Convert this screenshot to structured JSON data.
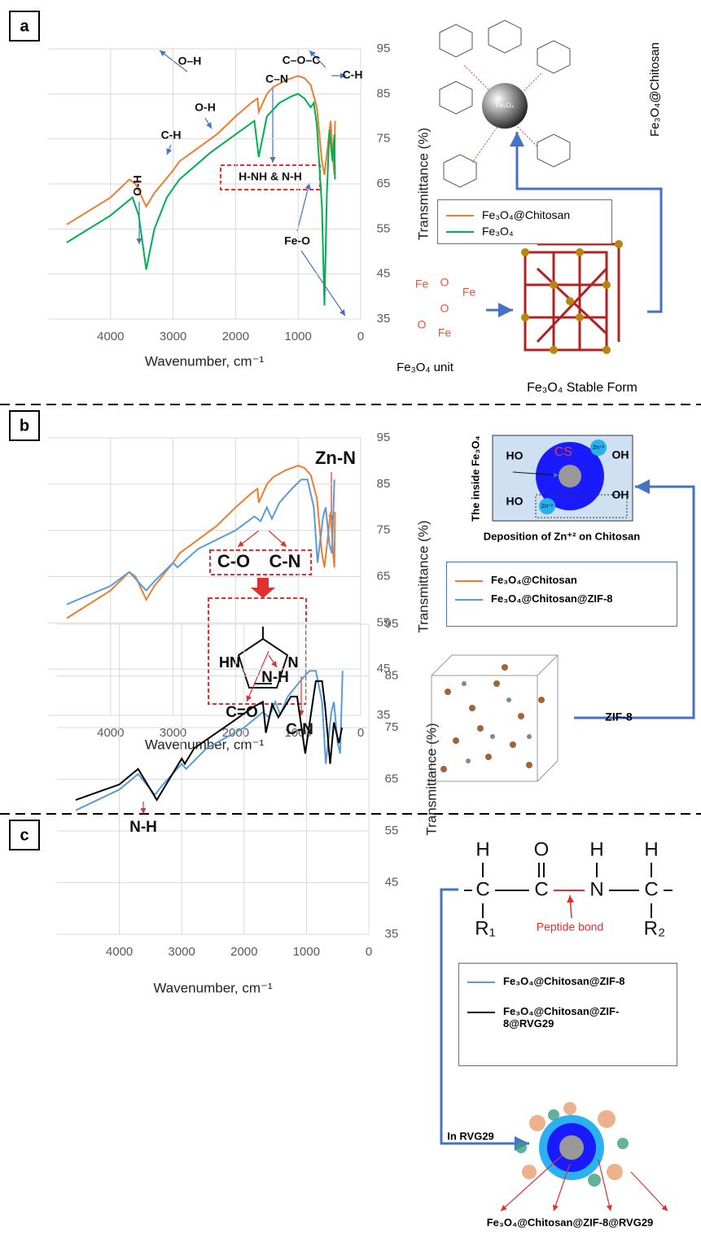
{
  "panels": [
    {
      "label": "a",
      "diagram": {
        "rotated_title": "Fe₃O₄@Chitosan",
        "sphere": "Fe₃O₄",
        "unit_atoms": [
          "Fe",
          "O",
          "Fe",
          "O",
          "Fe",
          "O"
        ],
        "unit_caption": "Fe₃O₄ unit",
        "stable_caption": "Fe₃O₄ Stable Form"
      }
    },
    {
      "label": "b",
      "diagram": {
        "inside": "The inside Fe₃O₄",
        "core": "CS",
        "groups": [
          "HO",
          "OH",
          "HO",
          "OH"
        ],
        "zn": [
          "Zn⁺²",
          "Zn⁺²"
        ],
        "caption": "Deposition of Zn⁺² on Chitosan",
        "framework": "ZIF-8",
        "imidazole": [
          "HN",
          "N"
        ]
      }
    },
    {
      "label": "c",
      "diagram": {
        "top_atoms": [
          "H",
          "O",
          "H",
          "H"
        ],
        "backbone": [
          "C",
          "C",
          "N",
          "C"
        ],
        "side": [
          "R₁",
          "R₂"
        ],
        "bond": "Peptide bond",
        "source": "In RVG29",
        "caption": "Fe₃O₄@Chitosan@ZIF-8@RVG29"
      }
    }
  ],
  "chart_data": [
    {
      "type": "line",
      "x_label": "Wavenumber, cm⁻¹",
      "y_label": "Transmittance (%)",
      "xlim": [
        5000,
        0
      ],
      "xticks": [
        4000,
        3000,
        2000,
        1000,
        0
      ],
      "ylim": [
        35,
        95
      ],
      "yticks": [
        35,
        45,
        55,
        65,
        75,
        85,
        95
      ],
      "grid": true,
      "annotations": [
        "O-H",
        "C-H",
        "O-H",
        "O–H",
        "C–N",
        "C–O–C",
        "C-H",
        "H-NH & N-H",
        "Fe-O"
      ],
      "series": [
        {
          "name": "Fe₃O₄@Chitosan",
          "color": "#ed7d31",
          "x": [
            4700,
            4000,
            3700,
            3600,
            3430,
            3300,
            3000,
            2900,
            2700,
            2300,
            2000,
            1750,
            1650,
            1630,
            1500,
            1400,
            1200,
            1000,
            900,
            800,
            700,
            620,
            580,
            480,
            440,
            420,
            410
          ],
          "values": [
            56,
            62,
            66,
            65,
            60,
            63,
            68,
            70,
            72,
            76,
            80,
            83,
            84,
            81,
            85,
            86.5,
            88,
            89,
            88.5,
            87,
            82,
            70,
            67,
            79,
            70,
            67,
            79
          ]
        },
        {
          "name": "Fe₃O₄",
          "color": "#00b050",
          "x": [
            4700,
            4000,
            3650,
            3550,
            3430,
            3300,
            3100,
            2900,
            2400,
            2000,
            1700,
            1630,
            1500,
            1300,
            1100,
            1000,
            900,
            800,
            750,
            700,
            620,
            580,
            540,
            500,
            450,
            420,
            410
          ],
          "values": [
            52,
            58,
            62,
            58,
            46,
            55,
            62,
            66,
            72,
            76,
            79,
            71,
            80,
            83,
            84.5,
            85,
            84,
            82,
            83,
            78,
            60,
            38,
            63,
            77,
            70,
            76,
            66
          ]
        }
      ]
    },
    {
      "type": "line",
      "x_label": "Wavenumber, cm⁻¹",
      "y_label": "Transmittance (%)",
      "xlim": [
        5000,
        0
      ],
      "xticks": [
        4000,
        3000,
        2000,
        1000,
        0
      ],
      "ylim": [
        35,
        95
      ],
      "yticks": [
        35,
        45,
        55,
        65,
        75,
        85,
        95
      ],
      "grid": true,
      "annotations": [
        "Zn-N",
        "C-O",
        "C-N"
      ],
      "series": [
        {
          "name": "Fe₃O₄@Chitosan",
          "color": "#ed7d31",
          "x": [
            4700,
            4000,
            3700,
            3600,
            3430,
            3300,
            3000,
            2900,
            2700,
            2300,
            2000,
            1750,
            1650,
            1630,
            1500,
            1400,
            1200,
            1000,
            900,
            800,
            700,
            620,
            580,
            480,
            440,
            420,
            410
          ],
          "values": [
            56,
            62,
            66,
            65,
            60,
            63,
            68,
            70,
            72,
            76,
            80,
            83,
            84,
            81,
            85,
            86.5,
            88,
            89,
            88.5,
            87,
            82,
            70,
            67,
            79,
            70,
            67,
            79
          ]
        },
        {
          "name": "Fe₃O₄@Chitosan@ZIF-8",
          "color": "#5b9bd5",
          "x": [
            4700,
            4000,
            3700,
            3430,
            3300,
            3000,
            2930,
            2600,
            2000,
            1700,
            1600,
            1500,
            1420,
            1300,
            1100,
            950,
            850,
            750,
            690,
            600,
            560,
            500,
            460,
            420
          ],
          "values": [
            59,
            63,
            66,
            62,
            64,
            68,
            67,
            71,
            75,
            78,
            77,
            80,
            77.5,
            81,
            84,
            86,
            86,
            80,
            68,
            78,
            80,
            72,
            70,
            86
          ]
        }
      ]
    },
    {
      "type": "line",
      "x_label": "Wavenumber, cm⁻¹",
      "y_label": "Transmittance (%)",
      "xlim": [
        5000,
        0
      ],
      "xticks": [
        4000,
        3000,
        2000,
        1000,
        0
      ],
      "ylim": [
        35,
        95
      ],
      "yticks": [
        35,
        45,
        55,
        65,
        75,
        85,
        95
      ],
      "grid": true,
      "annotations": [
        "C=O",
        "N-H",
        "C-N",
        "N-H"
      ],
      "series": [
        {
          "name": "Fe₃O₄@Chitosan@ZIF-8",
          "color": "#5b9bd5",
          "x": [
            4700,
            4000,
            3700,
            3430,
            3300,
            3000,
            2930,
            2600,
            2000,
            1700,
            1600,
            1500,
            1420,
            1300,
            1100,
            950,
            850,
            750,
            690,
            600,
            560,
            500,
            460,
            420
          ],
          "values": [
            59,
            63,
            66,
            62,
            64,
            68,
            67,
            71,
            75,
            78,
            77,
            80,
            77.5,
            81,
            84,
            86,
            86,
            80,
            68,
            78,
            80,
            72,
            70,
            86
          ]
        },
        {
          "name": "Fe₃O₄@Chitosan@ZIF-8@RVG29",
          "color": "#000000",
          "x": [
            4700,
            4000,
            3700,
            3400,
            3200,
            3000,
            2950,
            2800,
            2200,
            1850,
            1700,
            1650,
            1550,
            1450,
            1350,
            1250,
            1150,
            1020,
            900,
            850,
            750,
            700,
            620,
            560,
            480,
            430
          ],
          "values": [
            61,
            64,
            67,
            61,
            65,
            69,
            68,
            71,
            76,
            79,
            80,
            74,
            79.5,
            77,
            79,
            81,
            81,
            70,
            80,
            84,
            84,
            79,
            68,
            76,
            72,
            75
          ]
        }
      ]
    }
  ]
}
